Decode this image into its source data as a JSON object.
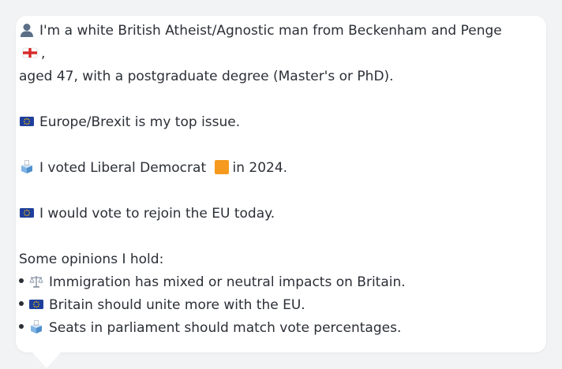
{
  "profile": {
    "line1": "I'm a white British Atheist/Agnostic man from Beckenham and Penge",
    "line1b": ",",
    "line2": "aged 47, with a postgraduate degree (Master's or PhD).",
    "issue": "Europe/Brexit is my top issue.",
    "voted_prefix": "I voted Liberal Democrat",
    "voted_suffix": "in 2024.",
    "rejoin": "I would vote to rejoin the EU today.",
    "opinions_heading": "Some opinions I hold:",
    "opinions": [
      "Immigration has mixed or neutral impacts on Britain.",
      "Britain should unite more with the EU.",
      "Seats in parliament should match vote percentages."
    ]
  },
  "icons": {
    "person": "person-silhouette-icon",
    "england_flag": "england-flag-icon",
    "eu_flag": "eu-flag-icon",
    "ballot_box": "ballot-box-icon",
    "party_color_square": "orange-square-icon",
    "scales": "balance-scale-icon"
  },
  "colors": {
    "background": "#f2f3f5",
    "card": "#ffffff",
    "text": "#2b2f36",
    "eu_blue": "#1f3f9c",
    "eu_star": "#f6c400",
    "libdem_orange": "#f59a1e",
    "england_red": "#d62828"
  }
}
